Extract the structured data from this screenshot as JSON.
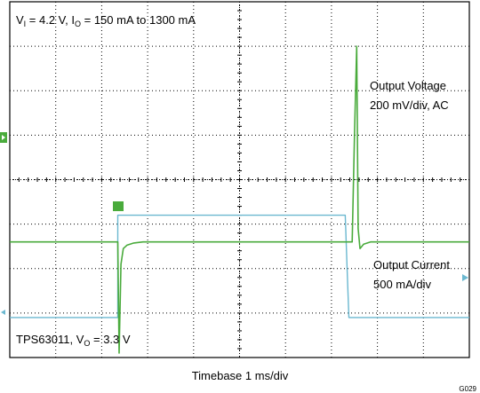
{
  "chart_data": {
    "type": "line",
    "conditions": {
      "v_label": "V",
      "v_sub": "I",
      "v_value": " = 4.2 V, I",
      "i_sub": "O",
      "i_value": " = 150 mA to 1300 mA"
    },
    "device": {
      "name": "TPS63011, V",
      "sub": "O",
      "value": " = 3.3 V"
    },
    "xlabel": "Timebase 1 ms/div",
    "figure_id": "G029",
    "grid": {
      "divisions_x": 10,
      "divisions_y": 8,
      "style": "dotted"
    },
    "time_unit_ms_per_div": 1,
    "xlim": [
      0,
      10
    ],
    "series": [
      {
        "name": "Output Voltage",
        "scale": "200 mV/div, AC",
        "color": "#4aab3c",
        "unit": "mV",
        "ylim_div": [
          -2.6,
          5.4
        ],
        "x": [
          0,
          2.35,
          2.38,
          2.42,
          2.47,
          2.55,
          2.7,
          2.9,
          7.45,
          7.5,
          7.55,
          7.58,
          7.62,
          7.7,
          7.85,
          10
        ],
        "y": [
          0,
          0,
          -500,
          -100,
          -30,
          -15,
          -5,
          0,
          0,
          480,
          880,
          60,
          -30,
          -10,
          0,
          0
        ]
      },
      {
        "name": "Output Current",
        "scale": "500 mA/div",
        "color": "#6bb8d0",
        "unit": "mA",
        "ylim_div": [
          -0.6,
          7.4
        ],
        "x": [
          0,
          2.35,
          2.35,
          2.4,
          7.3,
          7.34,
          7.38,
          10
        ],
        "y": [
          150,
          150,
          1300,
          1300,
          1300,
          700,
          150,
          150
        ]
      }
    ]
  }
}
